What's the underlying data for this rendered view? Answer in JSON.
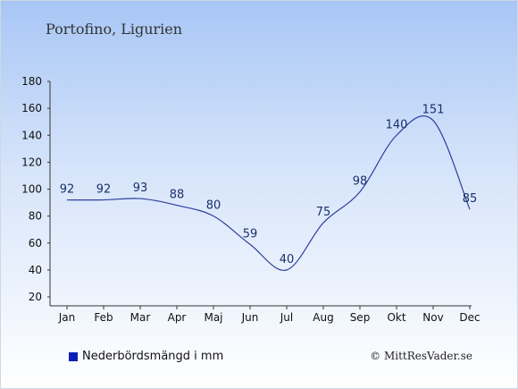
{
  "title": "Portofino, Ligurien",
  "legend": {
    "label": "Nederbördsmängd i mm",
    "color": "#0a1fb5"
  },
  "credit": "© MittResVader.se",
  "chart_data": {
    "type": "line",
    "categories": [
      "Jan",
      "Feb",
      "Mar",
      "Apr",
      "Maj",
      "Jun",
      "Jul",
      "Aug",
      "Sep",
      "Okt",
      "Nov",
      "Dec"
    ],
    "series": [
      {
        "name": "Nederbördsmängd i mm",
        "values": [
          92,
          92,
          93,
          88,
          80,
          59,
          40,
          75,
          98,
          140,
          151,
          85
        ]
      }
    ],
    "data_labels": [
      "92",
      "92",
      "93",
      "88",
      "80",
      "59",
      "40",
      "75",
      "98",
      "140",
      "151",
      "85"
    ],
    "ylim": [
      20,
      180
    ],
    "yticks": [
      "20",
      "40",
      "60",
      "80",
      "100",
      "120",
      "140",
      "160",
      "180"
    ],
    "line_color": "#2b3f9e",
    "grid": false,
    "legend_position": "bottom-left"
  }
}
